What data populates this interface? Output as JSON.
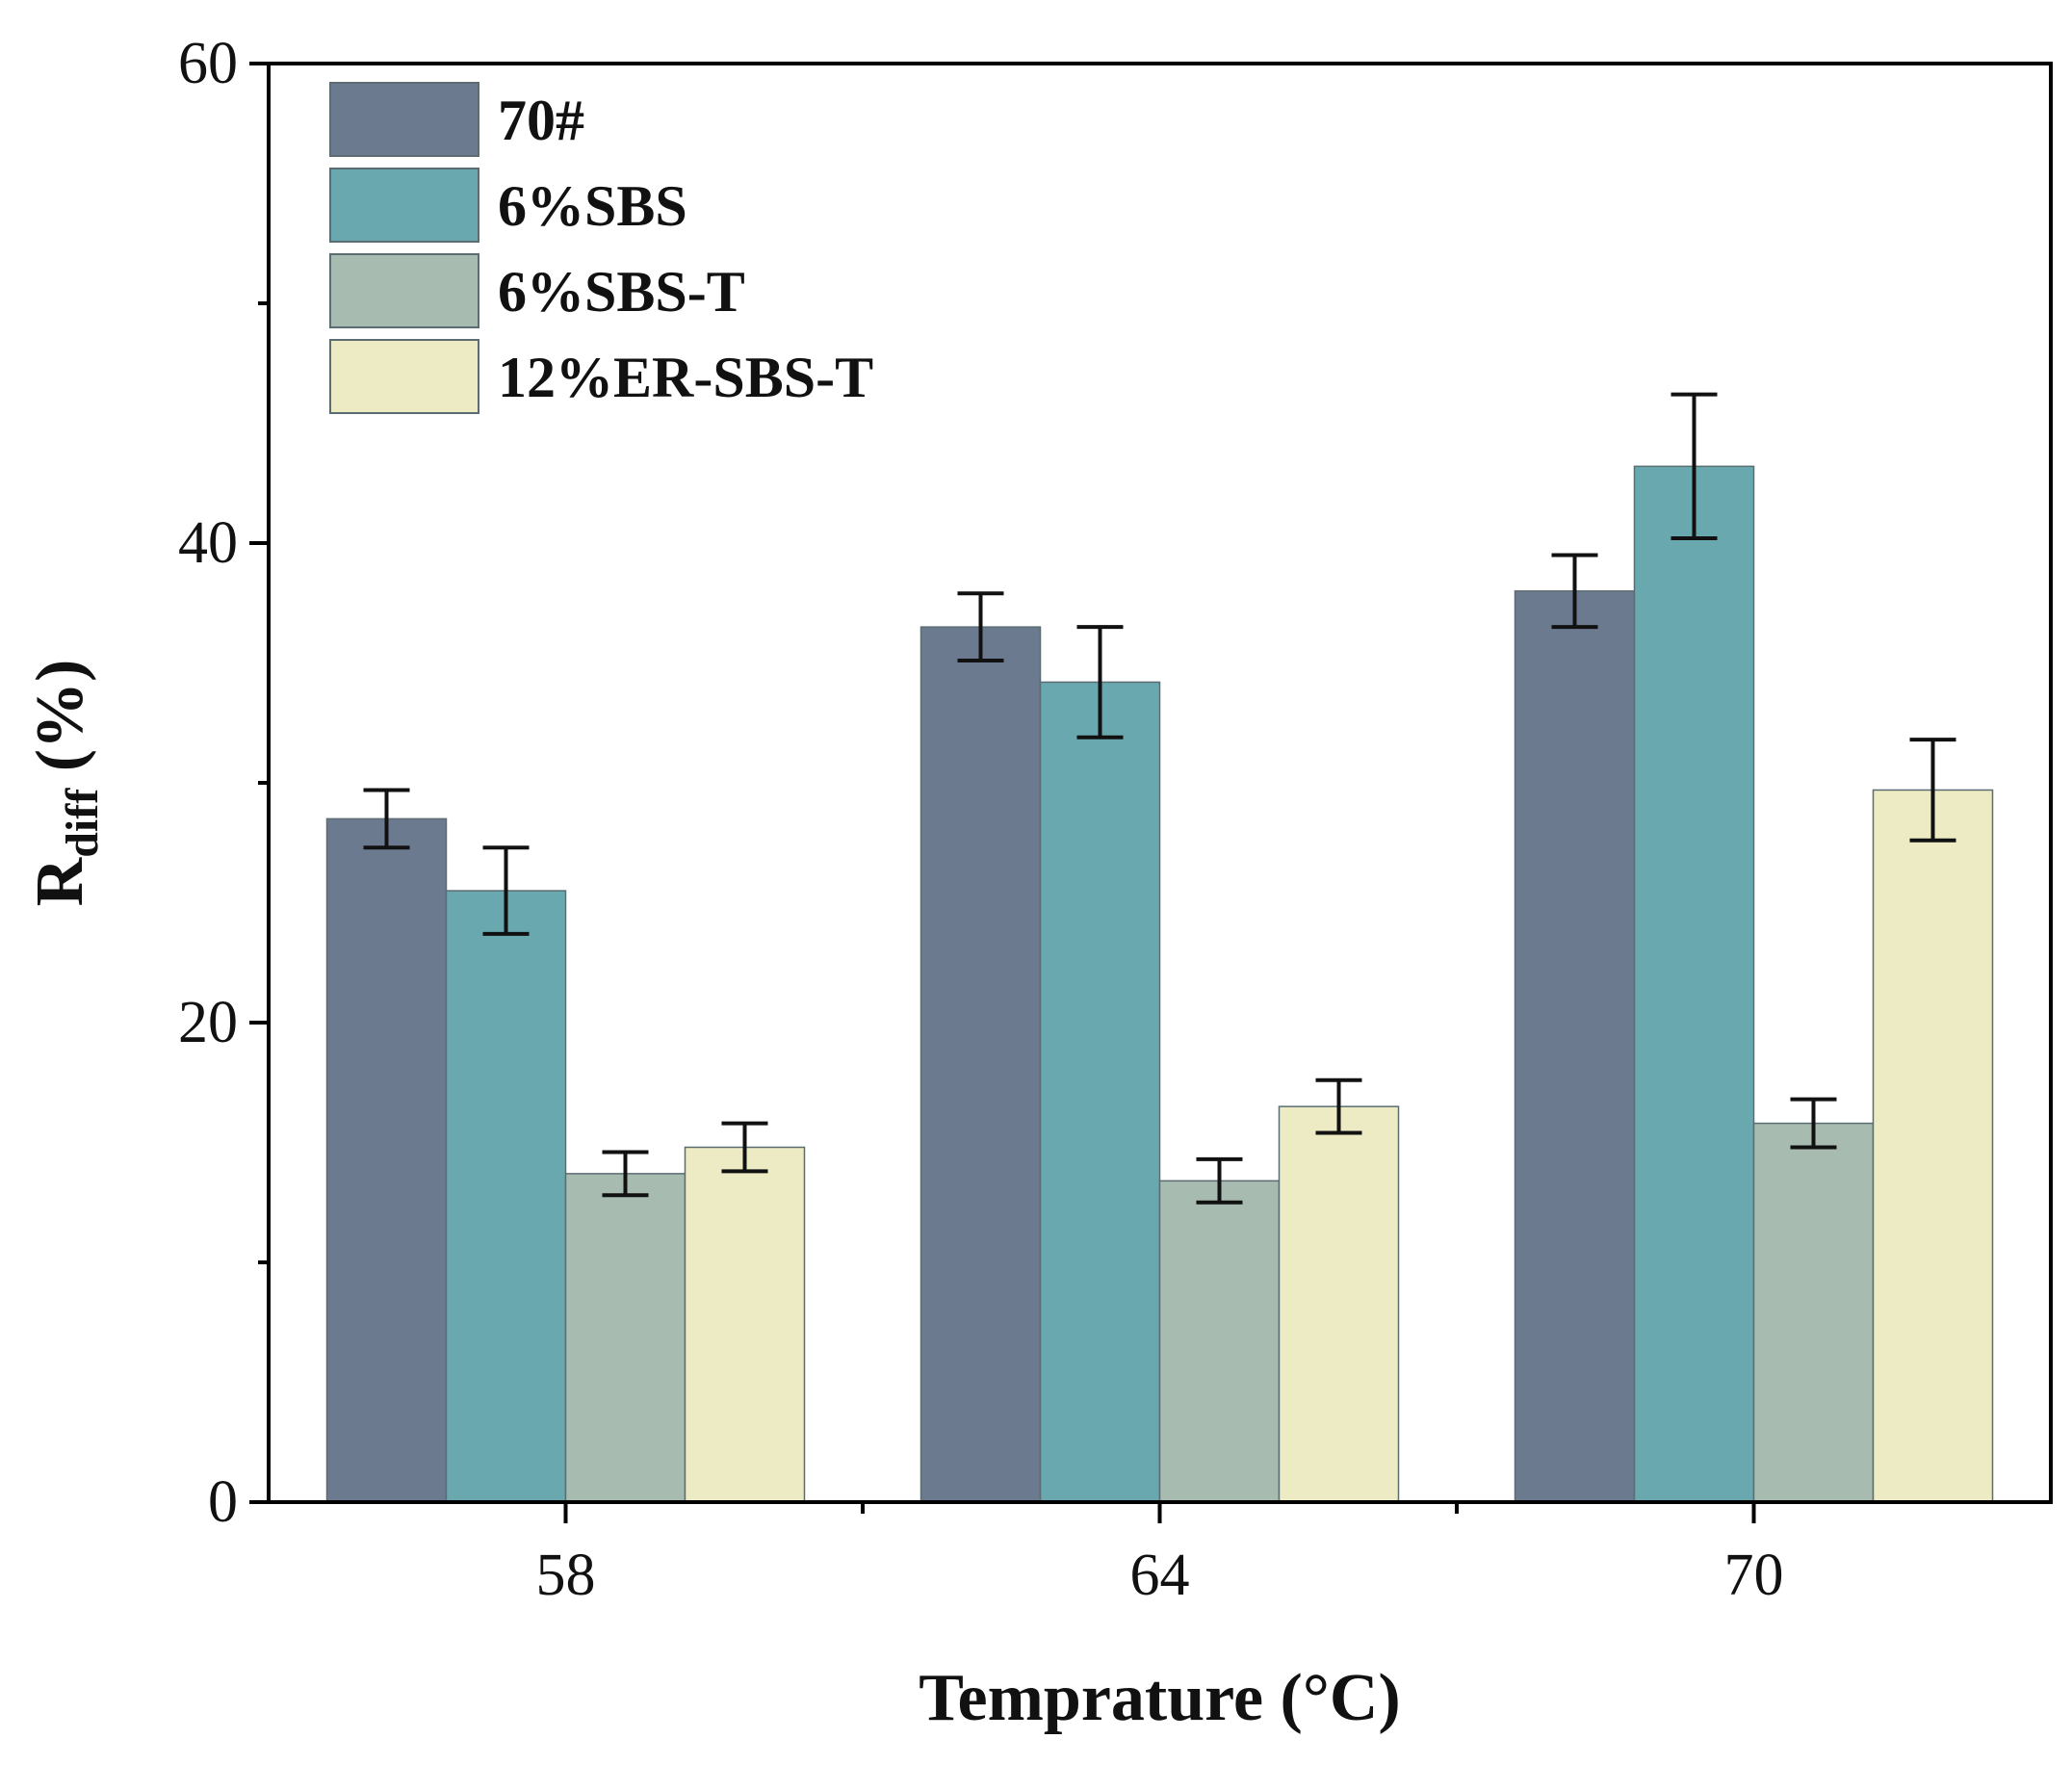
{
  "chart_data": {
    "type": "bar",
    "title": "",
    "xlabel": "Temprature (°C)",
    "ylabel": {
      "main": "R",
      "subscript": "diff",
      "unit": " (%)"
    },
    "categories": [
      "58",
      "64",
      "70"
    ],
    "ylim": [
      0,
      60
    ],
    "yticks": [
      "0",
      "20",
      "40",
      "60"
    ],
    "grid": false,
    "legend_position": "top-left",
    "series": [
      {
        "name": "70#",
        "color": "#6b7a8f",
        "values": [
          28.5,
          36.5,
          38.0
        ],
        "errors": [
          1.2,
          1.4,
          1.5
        ]
      },
      {
        "name": "6%SBS",
        "color": "#6aa8af",
        "values": [
          25.5,
          34.2,
          43.2
        ],
        "errors": [
          1.8,
          2.3,
          3.0
        ]
      },
      {
        "name": "6%SBS-T",
        "color": "#a8bbb1",
        "values": [
          13.7,
          13.4,
          15.8
        ],
        "errors": [
          0.9,
          0.9,
          1.0
        ]
      },
      {
        "name": "12%ER-SBS-T",
        "color": "#ecebc3",
        "values": [
          14.8,
          16.5,
          29.7
        ],
        "errors": [
          1.0,
          1.1,
          2.1
        ]
      }
    ]
  }
}
